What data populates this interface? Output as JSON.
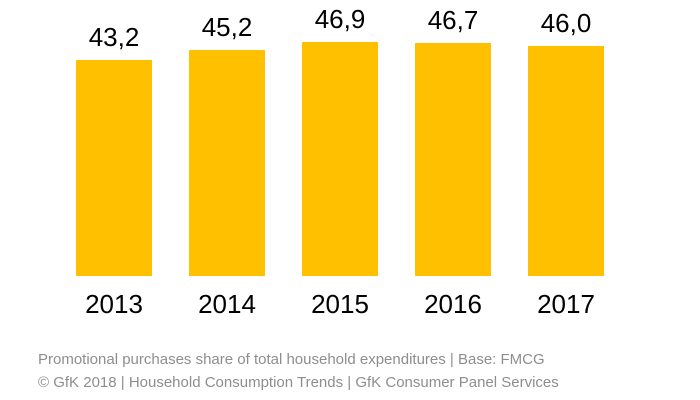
{
  "chart_data": {
    "type": "bar",
    "title": "",
    "xlabel": "",
    "ylabel": "",
    "categories": [
      "2013",
      "2014",
      "2015",
      "2016",
      "2017"
    ],
    "values": [
      43.2,
      45.2,
      46.9,
      46.7,
      46.0
    ],
    "value_labels": [
      "43,2",
      "45,2",
      "46,9",
      "46,7",
      "46,0"
    ],
    "ylim": [
      0,
      55.2
    ],
    "grid": false,
    "legend": false,
    "axis_lines": false,
    "bar_color": "#FFC000",
    "value_label_color": "#000000",
    "category_label_color": "#000000"
  },
  "footer": {
    "line1": "Promotional purchases share of total household expenditures | Base: FMCG",
    "line2": "© GfK 2018 | Household Consumption Trends | GfK Consumer Panel Services",
    "text_color": "#8e8e8e"
  }
}
